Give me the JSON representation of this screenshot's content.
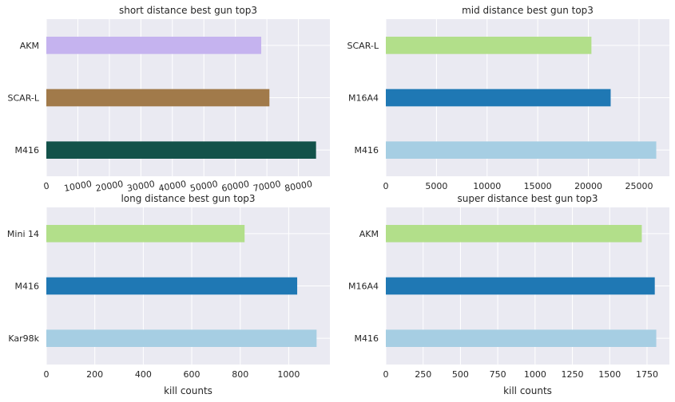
{
  "chart_data": [
    {
      "type": "bar",
      "orientation": "horizontal",
      "title": "short distance best gun top3",
      "categories": [
        "M416",
        "SCAR-L",
        "AKM"
      ],
      "values": [
        85600,
        70800,
        68200
      ],
      "colors": [
        "#13524a",
        "#a17a4a",
        "#c5b3ef"
      ],
      "xlim": [
        0,
        90000
      ],
      "xticks": [
        0,
        10000,
        20000,
        30000,
        40000,
        50000,
        60000,
        70000,
        80000
      ],
      "xtick_rotation": 10,
      "xlabel": "",
      "ylabel": "",
      "grid": true
    },
    {
      "type": "bar",
      "orientation": "horizontal",
      "title": "mid distance best gun top3",
      "categories": [
        "M416",
        "M16A4",
        "SCAR-L"
      ],
      "values": [
        26700,
        22200,
        20300
      ],
      "colors": [
        "#a6cee3",
        "#1f78b4",
        "#b2df8a"
      ],
      "xlim": [
        0,
        28000
      ],
      "xticks": [
        0,
        5000,
        10000,
        15000,
        20000,
        25000
      ],
      "xtick_rotation": 0,
      "xlabel": "",
      "ylabel": "",
      "grid": true
    },
    {
      "type": "bar",
      "orientation": "horizontal",
      "title": "long distance best gun top3",
      "categories": [
        "Kar98k",
        "M416",
        "Mini 14"
      ],
      "values": [
        1115,
        1035,
        818
      ],
      "colors": [
        "#a6cee3",
        "#1f78b4",
        "#b2df8a"
      ],
      "xlim": [
        0,
        1170
      ],
      "xticks": [
        0,
        200,
        400,
        600,
        800,
        1000
      ],
      "xtick_rotation": 0,
      "xlabel": "kill counts",
      "ylabel": "",
      "grid": true
    },
    {
      "type": "bar",
      "orientation": "horizontal",
      "title": "super distance best gun top3",
      "categories": [
        "M416",
        "M16A4",
        "AKM"
      ],
      "values": [
        1812,
        1802,
        1715
      ],
      "colors": [
        "#a6cee3",
        "#1f78b4",
        "#b2df8a"
      ],
      "xlim": [
        0,
        1900
      ],
      "xticks": [
        0,
        250,
        500,
        750,
        1000,
        1250,
        1500,
        1750
      ],
      "xtick_rotation": 0,
      "xlabel": "kill counts",
      "ylabel": "",
      "grid": true
    }
  ],
  "style": {
    "axes_background": "#eaeaf2",
    "grid_color": "#ffffff",
    "text_color": "#262626"
  }
}
